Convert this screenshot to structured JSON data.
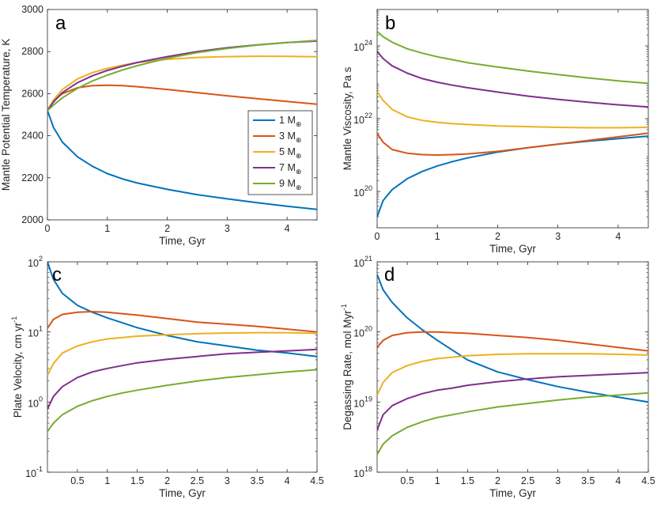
{
  "figure": {
    "legend": {
      "location": "panel a, lower right",
      "entries": [
        {
          "num": "1",
          "unit": "M",
          "sub": "⊕",
          "color": "#0072BD"
        },
        {
          "num": "3",
          "unit": "M",
          "sub": "⊕",
          "color": "#D95319"
        },
        {
          "num": "5",
          "unit": "M",
          "sub": "⊕",
          "color": "#EDB120"
        },
        {
          "num": "7",
          "unit": "M",
          "sub": "⊕",
          "color": "#7E2F8E"
        },
        {
          "num": "9",
          "unit": "M",
          "sub": "⊕",
          "color": "#77AC30"
        }
      ]
    },
    "series_names": [
      "1 M⊕",
      "3 M⊕",
      "5 M⊕",
      "7 M⊕",
      "9 M⊕"
    ],
    "series_colors": [
      "#0072BD",
      "#D95319",
      "#EDB120",
      "#7E2F8E",
      "#77AC30"
    ]
  },
  "chart_data": [
    {
      "panel": "a",
      "type": "line",
      "yscale": "linear",
      "xlabel": "Time, Gyr",
      "ylabel": "Mantle Potential Temperature, K",
      "xlim": [
        0,
        4.5
      ],
      "ylim": [
        2000,
        3000
      ],
      "xticks": [
        "0",
        "1",
        "2",
        "3",
        "4"
      ],
      "xtick_values": [
        0,
        1,
        2,
        3,
        4
      ],
      "yticks": [
        "2000",
        "2200",
        "2400",
        "2600",
        "2800",
        "3000"
      ],
      "ytick_values": [
        2000,
        2200,
        2400,
        2600,
        2800,
        3000
      ],
      "x": [
        0,
        0.1,
        0.25,
        0.5,
        0.75,
        1,
        1.25,
        1.5,
        2,
        2.5,
        3,
        3.5,
        4,
        4.5
      ],
      "series": [
        {
          "name": "1 M⊕",
          "values": [
            2520,
            2440,
            2370,
            2300,
            2255,
            2220,
            2195,
            2175,
            2145,
            2120,
            2100,
            2082,
            2065,
            2050
          ]
        },
        {
          "name": "3 M⊕",
          "values": [
            2520,
            2565,
            2600,
            2628,
            2638,
            2640,
            2638,
            2633,
            2620,
            2605,
            2590,
            2576,
            2563,
            2550
          ]
        },
        {
          "name": "5 M⊕",
          "values": [
            2520,
            2570,
            2620,
            2670,
            2700,
            2720,
            2735,
            2748,
            2763,
            2772,
            2776,
            2778,
            2777,
            2775
          ]
        },
        {
          "name": "7 M⊕",
          "values": [
            2520,
            2560,
            2605,
            2652,
            2685,
            2710,
            2730,
            2748,
            2776,
            2800,
            2818,
            2832,
            2843,
            2850
          ]
        },
        {
          "name": "9 M⊕",
          "values": [
            2520,
            2545,
            2580,
            2625,
            2660,
            2688,
            2712,
            2733,
            2768,
            2795,
            2815,
            2831,
            2843,
            2853
          ]
        }
      ]
    },
    {
      "panel": "b",
      "type": "line",
      "yscale": "log",
      "xlabel": "Time, Gyr",
      "ylabel": "Mantle Viscosity, Pa s",
      "xlim": [
        0,
        4.5
      ],
      "ylim_log10": [
        19,
        25
      ],
      "xticks": [
        "0",
        "1",
        "2",
        "3",
        "4"
      ],
      "xtick_values": [
        0,
        1,
        2,
        3,
        4
      ],
      "yticks_base": "10",
      "yticks_exp": [
        "20",
        "22",
        "24"
      ],
      "ytick_log10": [
        20,
        22,
        24
      ],
      "x": [
        0,
        0.1,
        0.25,
        0.5,
        0.75,
        1,
        1.25,
        1.5,
        2,
        2.5,
        3,
        3.5,
        4,
        4.5
      ],
      "series": [
        {
          "name": "1 M⊕",
          "log10_values": [
            19.3,
            19.75,
            20.05,
            20.35,
            20.55,
            20.7,
            20.82,
            20.92,
            21.08,
            21.2,
            21.3,
            21.38,
            21.45,
            21.52
          ]
        },
        {
          "name": "3 M⊕",
          "log10_values": [
            21.6,
            21.35,
            21.15,
            21.05,
            21.01,
            21.0,
            21.01,
            21.03,
            21.1,
            21.2,
            21.3,
            21.4,
            21.5,
            21.6
          ]
        },
        {
          "name": "5 M⊕",
          "log10_values": [
            22.75,
            22.5,
            22.25,
            22.05,
            21.95,
            21.9,
            21.86,
            21.84,
            21.8,
            21.78,
            21.76,
            21.75,
            21.75,
            21.76
          ]
        },
        {
          "name": "7 M⊕",
          "log10_values": [
            23.85,
            23.65,
            23.45,
            23.25,
            23.1,
            23.0,
            22.92,
            22.85,
            22.73,
            22.62,
            22.53,
            22.45,
            22.38,
            22.32
          ]
        },
        {
          "name": "9 M⊕",
          "log10_values": [
            24.4,
            24.25,
            24.1,
            23.92,
            23.8,
            23.7,
            23.62,
            23.54,
            23.42,
            23.31,
            23.21,
            23.12,
            23.04,
            22.97
          ]
        }
      ]
    },
    {
      "panel": "c",
      "type": "line",
      "yscale": "log",
      "xlabel": "Time, Gyr",
      "ylabel": "Plate Velocity, cm yr",
      "ylabel_sup": "-1",
      "xlim": [
        0,
        4.5
      ],
      "ylim_log10": [
        -1,
        2
      ],
      "xticks": [
        "0.5",
        "1",
        "1.5",
        "2",
        "2.5",
        "3",
        "3.5",
        "4",
        "4.5"
      ],
      "xtick_values": [
        0.5,
        1,
        1.5,
        2,
        2.5,
        3,
        3.5,
        4,
        4.5
      ],
      "yticks_base": "10",
      "yticks_exp": [
        "-1",
        "0",
        "1",
        "2"
      ],
      "ytick_log10": [
        -1,
        0,
        1,
        2
      ],
      "x": [
        0,
        0.1,
        0.25,
        0.5,
        0.75,
        1,
        1.25,
        1.5,
        2,
        2.5,
        3,
        3.5,
        4,
        4.5
      ],
      "series": [
        {
          "name": "1 M⊕",
          "log10_values": [
            2.0,
            1.75,
            1.55,
            1.38,
            1.28,
            1.2,
            1.13,
            1.06,
            0.95,
            0.86,
            0.8,
            0.74,
            0.7,
            0.65
          ]
        },
        {
          "name": "3 M⊕",
          "log10_values": [
            1.05,
            1.18,
            1.25,
            1.28,
            1.29,
            1.28,
            1.26,
            1.24,
            1.19,
            1.14,
            1.11,
            1.08,
            1.04,
            1.0
          ]
        },
        {
          "name": "5 M⊕",
          "log10_values": [
            0.38,
            0.55,
            0.7,
            0.8,
            0.86,
            0.9,
            0.92,
            0.94,
            0.96,
            0.975,
            0.985,
            0.99,
            0.99,
            0.98
          ]
        },
        {
          "name": "7 M⊕",
          "log10_values": [
            -0.1,
            0.08,
            0.22,
            0.35,
            0.43,
            0.48,
            0.52,
            0.56,
            0.61,
            0.65,
            0.69,
            0.71,
            0.73,
            0.75
          ]
        },
        {
          "name": "9 M⊕",
          "log10_values": [
            -0.42,
            -0.3,
            -0.18,
            -0.06,
            0.02,
            0.08,
            0.13,
            0.17,
            0.24,
            0.3,
            0.35,
            0.39,
            0.43,
            0.46
          ]
        }
      ]
    },
    {
      "panel": "d",
      "type": "line",
      "yscale": "log",
      "xlabel": "Time, Gyr",
      "ylabel": "Degassing Rate, mol Myr",
      "ylabel_sup": "-1",
      "xlim": [
        0,
        4.5
      ],
      "ylim_log10": [
        18,
        21
      ],
      "xticks": [
        "0.5",
        "1",
        "1.5",
        "2",
        "2.5",
        "3",
        "3.5",
        "4",
        "4.5"
      ],
      "xtick_values": [
        0.5,
        1,
        1.5,
        2,
        2.5,
        3,
        3.5,
        4,
        4.5
      ],
      "yticks_base": "10",
      "yticks_exp": [
        "18",
        "19",
        "20",
        "21"
      ],
      "ytick_log10": [
        18,
        19,
        20,
        21
      ],
      "x": [
        0,
        0.1,
        0.25,
        0.5,
        0.75,
        1,
        1.25,
        1.5,
        2,
        2.5,
        3,
        3.5,
        4,
        4.5
      ],
      "series": [
        {
          "name": "1 M⊕",
          "log10_values": [
            20.82,
            20.6,
            20.42,
            20.2,
            20.03,
            19.88,
            19.74,
            19.6,
            19.43,
            19.32,
            19.22,
            19.14,
            19.07,
            19.0
          ]
        },
        {
          "name": "3 M⊕",
          "log10_values": [
            19.78,
            19.88,
            19.95,
            19.99,
            20.0,
            20.0,
            19.99,
            19.98,
            19.95,
            19.92,
            19.88,
            19.83,
            19.78,
            19.73
          ]
        },
        {
          "name": "5 M⊕",
          "log10_values": [
            19.1,
            19.28,
            19.42,
            19.52,
            19.58,
            19.62,
            19.64,
            19.66,
            19.68,
            19.69,
            19.69,
            19.69,
            19.68,
            19.67
          ]
        },
        {
          "name": "7 M⊕",
          "log10_values": [
            18.6,
            18.82,
            18.95,
            19.05,
            19.12,
            19.17,
            19.2,
            19.24,
            19.29,
            19.33,
            19.36,
            19.38,
            19.4,
            19.42
          ]
        },
        {
          "name": "9 M⊕",
          "log10_values": [
            18.25,
            18.4,
            18.52,
            18.64,
            18.72,
            18.78,
            18.82,
            18.86,
            18.93,
            18.98,
            19.03,
            19.07,
            19.1,
            19.13
          ]
        }
      ]
    }
  ]
}
